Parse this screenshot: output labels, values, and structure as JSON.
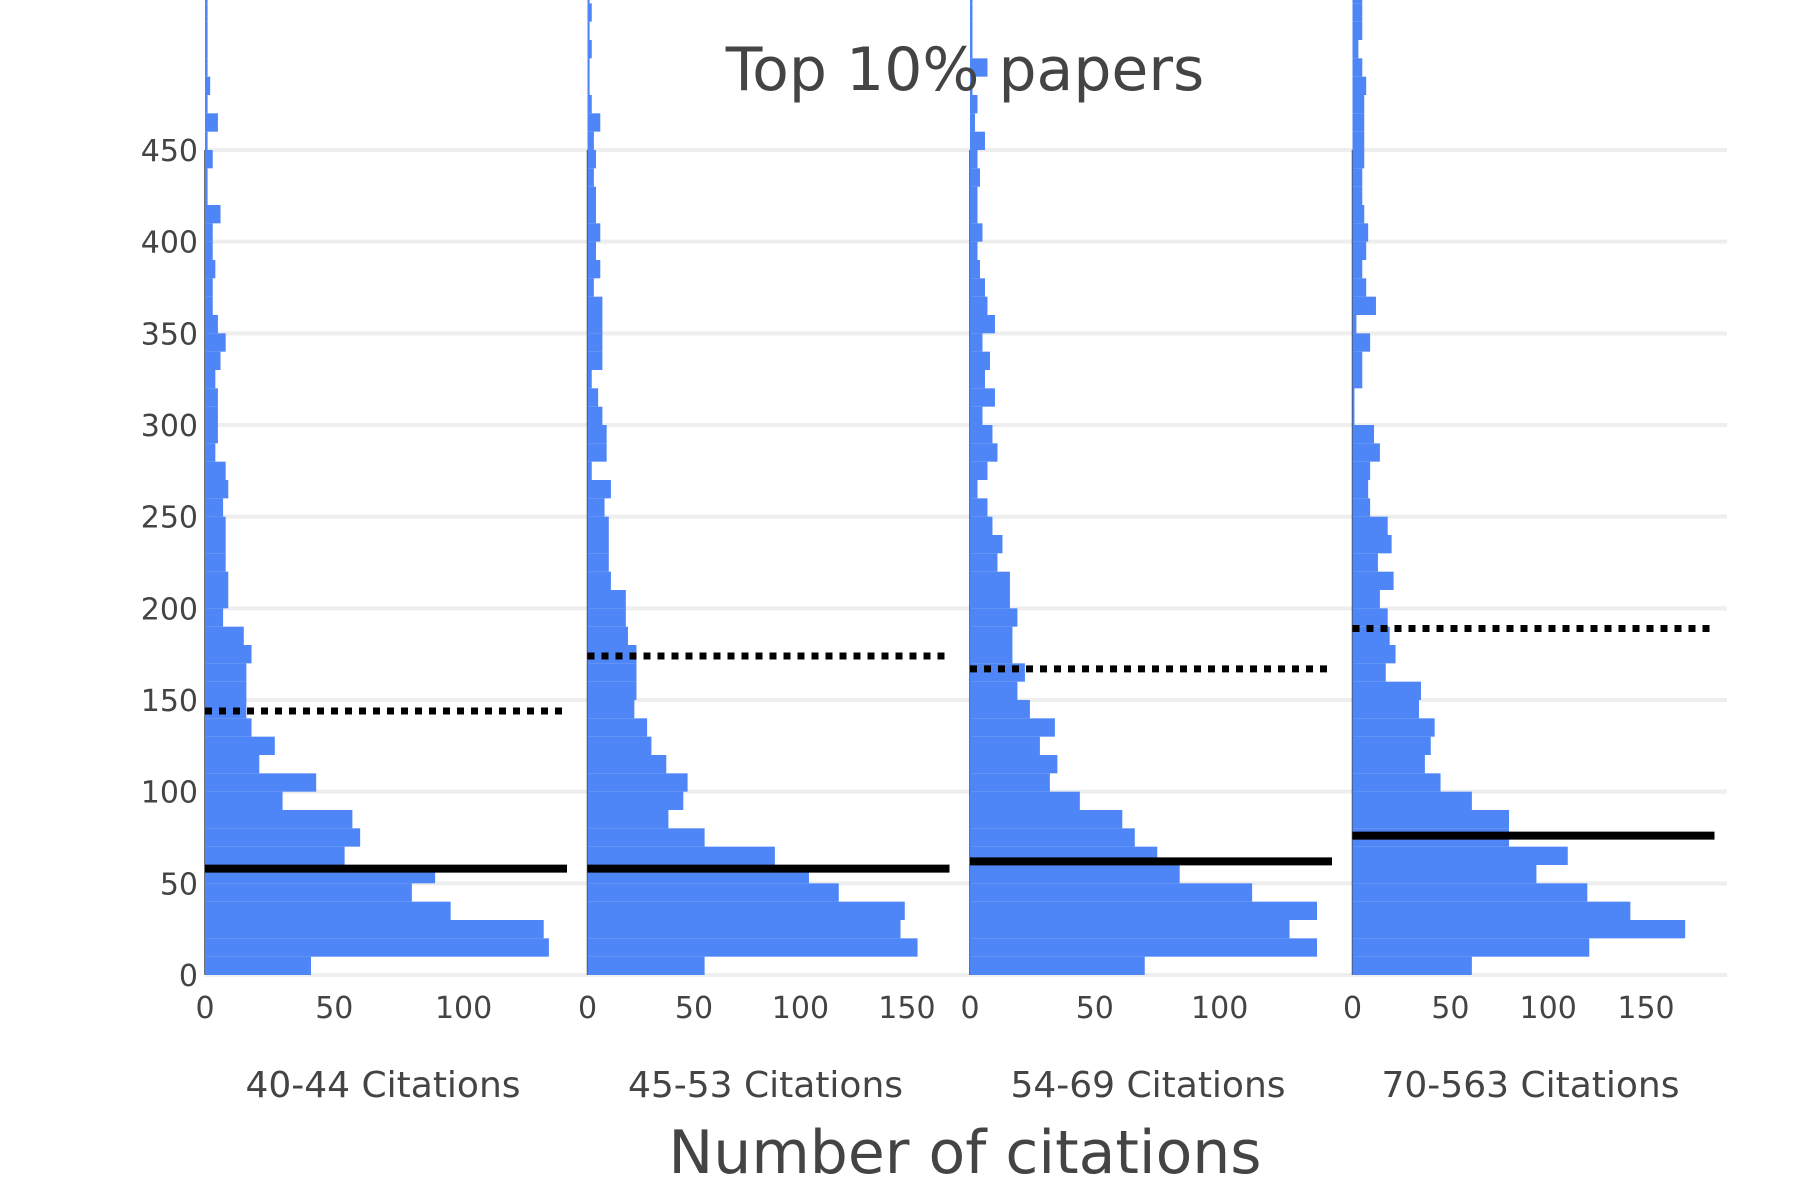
{
  "chart_data": {
    "type": "bar",
    "orientation": "horizontal",
    "title": "Top 10% papers",
    "xlabel": "Number of citations",
    "ylabel": "",
    "ylim": [
      0,
      450
    ],
    "yticks": [
      0,
      50,
      100,
      150,
      200,
      250,
      300,
      350,
      400,
      450
    ],
    "y_bin_width": 10,
    "grid": true,
    "bar_color": "#4f86f7",
    "line_color": "#000000",
    "panels": [
      {
        "label": "40-44 Citations",
        "xlim": [
          0,
          140
        ],
        "xticks": [
          0,
          50,
          100
        ],
        "bin_counts": [
          41,
          133,
          131,
          95,
          80,
          89,
          54,
          60,
          57,
          30,
          43,
          21,
          27,
          18,
          16,
          16,
          16,
          18,
          15,
          7,
          9,
          9,
          8,
          8,
          8,
          7,
          9,
          8,
          4,
          5,
          5,
          5,
          4,
          6,
          8,
          5,
          3,
          3,
          4,
          3,
          3,
          6,
          1,
          1,
          3,
          1,
          5,
          1,
          2,
          1,
          1,
          1,
          1,
          1,
          2
        ],
        "mean": 144,
        "median": 58
      },
      {
        "label": "45-53 Citations",
        "xlim": [
          0,
          170
        ],
        "xticks": [
          0,
          50,
          100,
          150
        ],
        "bin_counts": [
          55,
          155,
          147,
          149,
          118,
          104,
          88,
          55,
          38,
          45,
          47,
          37,
          30,
          28,
          22,
          23,
          23,
          23,
          19,
          18,
          18,
          11,
          10,
          10,
          10,
          8,
          11,
          2,
          9,
          9,
          7,
          5,
          2,
          7,
          7,
          7,
          7,
          3,
          6,
          4,
          6,
          4,
          4,
          3,
          4,
          3,
          6,
          2,
          1,
          1,
          2,
          1,
          2,
          1,
          1
        ],
        "mean": 174,
        "median": 58
      },
      {
        "label": "54-69 Citations",
        "xlim": [
          0,
          145
        ],
        "xticks": [
          0,
          50,
          100
        ],
        "bin_counts": [
          70,
          139,
          128,
          139,
          113,
          84,
          75,
          66,
          61,
          44,
          32,
          35,
          28,
          34,
          24,
          19,
          22,
          17,
          17,
          19,
          16,
          16,
          11,
          13,
          9,
          7,
          3,
          7,
          11,
          9,
          5,
          10,
          6,
          8,
          5,
          10,
          7,
          6,
          4,
          3,
          5,
          3,
          3,
          4,
          3,
          6,
          2,
          3,
          1,
          7,
          1,
          1,
          1,
          1,
          2
        ],
        "mean": 167,
        "median": 62
      },
      {
        "label": "70-563 Citations",
        "xlim": [
          0,
          185
        ],
        "xticks": [
          0,
          50,
          100,
          150
        ],
        "bin_counts": [
          61,
          121,
          170,
          142,
          120,
          94,
          110,
          80,
          80,
          61,
          45,
          37,
          40,
          42,
          34,
          35,
          17,
          22,
          19,
          18,
          14,
          21,
          13,
          20,
          18,
          9,
          8,
          9,
          14,
          11,
          1,
          1,
          5,
          5,
          9,
          2,
          12,
          7,
          5,
          7,
          8,
          6,
          5,
          5,
          6,
          6,
          6,
          6,
          7,
          5,
          3,
          5,
          5,
          5,
          5
        ],
        "mean": 189,
        "median": 76
      }
    ]
  }
}
